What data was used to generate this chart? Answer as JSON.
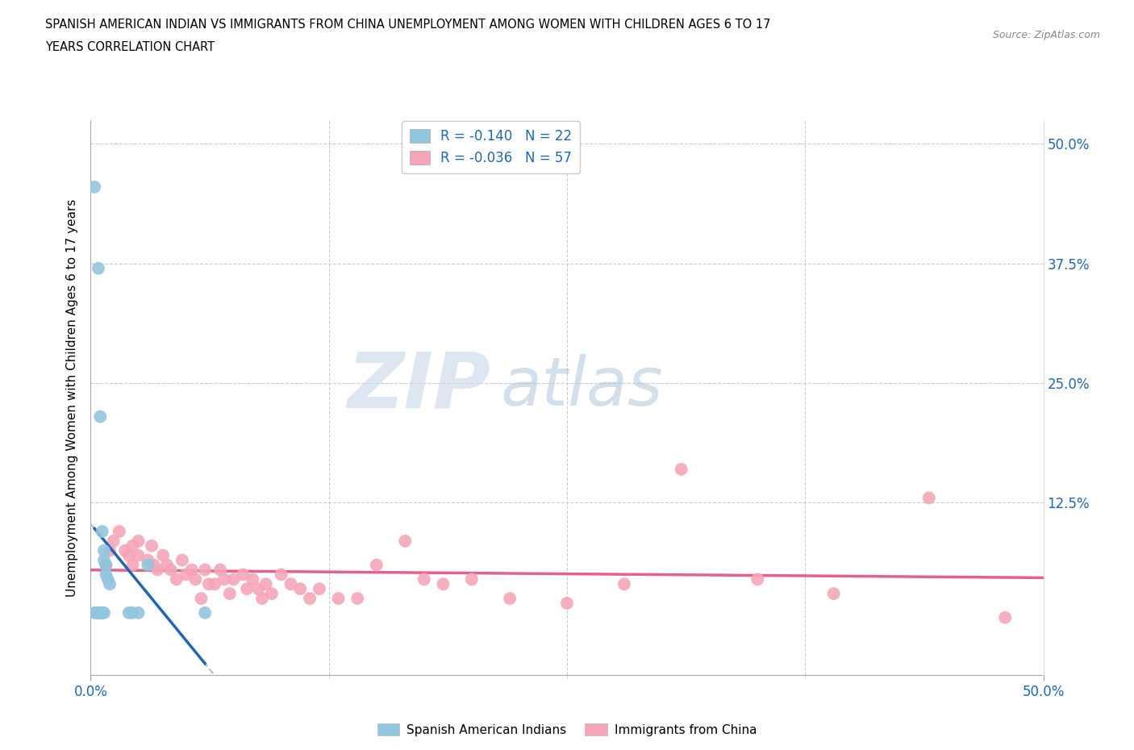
{
  "title_line1": "SPANISH AMERICAN INDIAN VS IMMIGRANTS FROM CHINA UNEMPLOYMENT AMONG WOMEN WITH CHILDREN AGES 6 TO 17",
  "title_line2": "YEARS CORRELATION CHART",
  "source": "Source: ZipAtlas.com",
  "ylabel": "Unemployment Among Women with Children Ages 6 to 17 years",
  "xlim": [
    0.0,
    0.5
  ],
  "ylim": [
    -0.055,
    0.525
  ],
  "blue_R": -0.14,
  "blue_N": 22,
  "pink_R": -0.036,
  "pink_N": 57,
  "blue_color": "#92C5DE",
  "pink_color": "#F4A6B8",
  "blue_line_color": "#2166AC",
  "pink_line_color": "#E8608A",
  "blue_dashed_color": "#AAAACC",
  "legend_label_blue": "Spanish American Indians",
  "legend_label_pink": "Immigrants from China",
  "watermark_ZIP": "ZIP",
  "watermark_atlas": "atlas",
  "blue_x": [
    0.002,
    0.002,
    0.003,
    0.004,
    0.004,
    0.005,
    0.005,
    0.006,
    0.006,
    0.006,
    0.007,
    0.007,
    0.007,
    0.008,
    0.008,
    0.009,
    0.01,
    0.02,
    0.022,
    0.025,
    0.03,
    0.06
  ],
  "blue_y": [
    0.455,
    0.01,
    0.01,
    0.37,
    0.01,
    0.215,
    0.01,
    0.095,
    0.01,
    0.01,
    0.075,
    0.065,
    0.01,
    0.06,
    0.05,
    0.045,
    0.04,
    0.01,
    0.01,
    0.01,
    0.06,
    0.01
  ],
  "pink_x": [
    0.008,
    0.01,
    0.012,
    0.015,
    0.018,
    0.02,
    0.022,
    0.022,
    0.025,
    0.025,
    0.03,
    0.032,
    0.033,
    0.035,
    0.038,
    0.04,
    0.042,
    0.045,
    0.048,
    0.05,
    0.053,
    0.055,
    0.058,
    0.06,
    0.062,
    0.065,
    0.068,
    0.07,
    0.073,
    0.075,
    0.08,
    0.082,
    0.085,
    0.088,
    0.09,
    0.092,
    0.095,
    0.1,
    0.105,
    0.11,
    0.115,
    0.12,
    0.13,
    0.14,
    0.15,
    0.165,
    0.175,
    0.185,
    0.2,
    0.22,
    0.25,
    0.28,
    0.31,
    0.35,
    0.39,
    0.44,
    0.48
  ],
  "pink_y": [
    0.06,
    0.075,
    0.085,
    0.095,
    0.075,
    0.07,
    0.08,
    0.06,
    0.07,
    0.085,
    0.065,
    0.08,
    0.06,
    0.055,
    0.07,
    0.06,
    0.055,
    0.045,
    0.065,
    0.05,
    0.055,
    0.045,
    0.025,
    0.055,
    0.04,
    0.04,
    0.055,
    0.045,
    0.03,
    0.045,
    0.05,
    0.035,
    0.045,
    0.035,
    0.025,
    0.04,
    0.03,
    0.05,
    0.04,
    0.035,
    0.025,
    0.035,
    0.025,
    0.025,
    0.06,
    0.085,
    0.045,
    0.04,
    0.045,
    0.025,
    0.02,
    0.04,
    0.16,
    0.045,
    0.03,
    0.13,
    0.005
  ]
}
